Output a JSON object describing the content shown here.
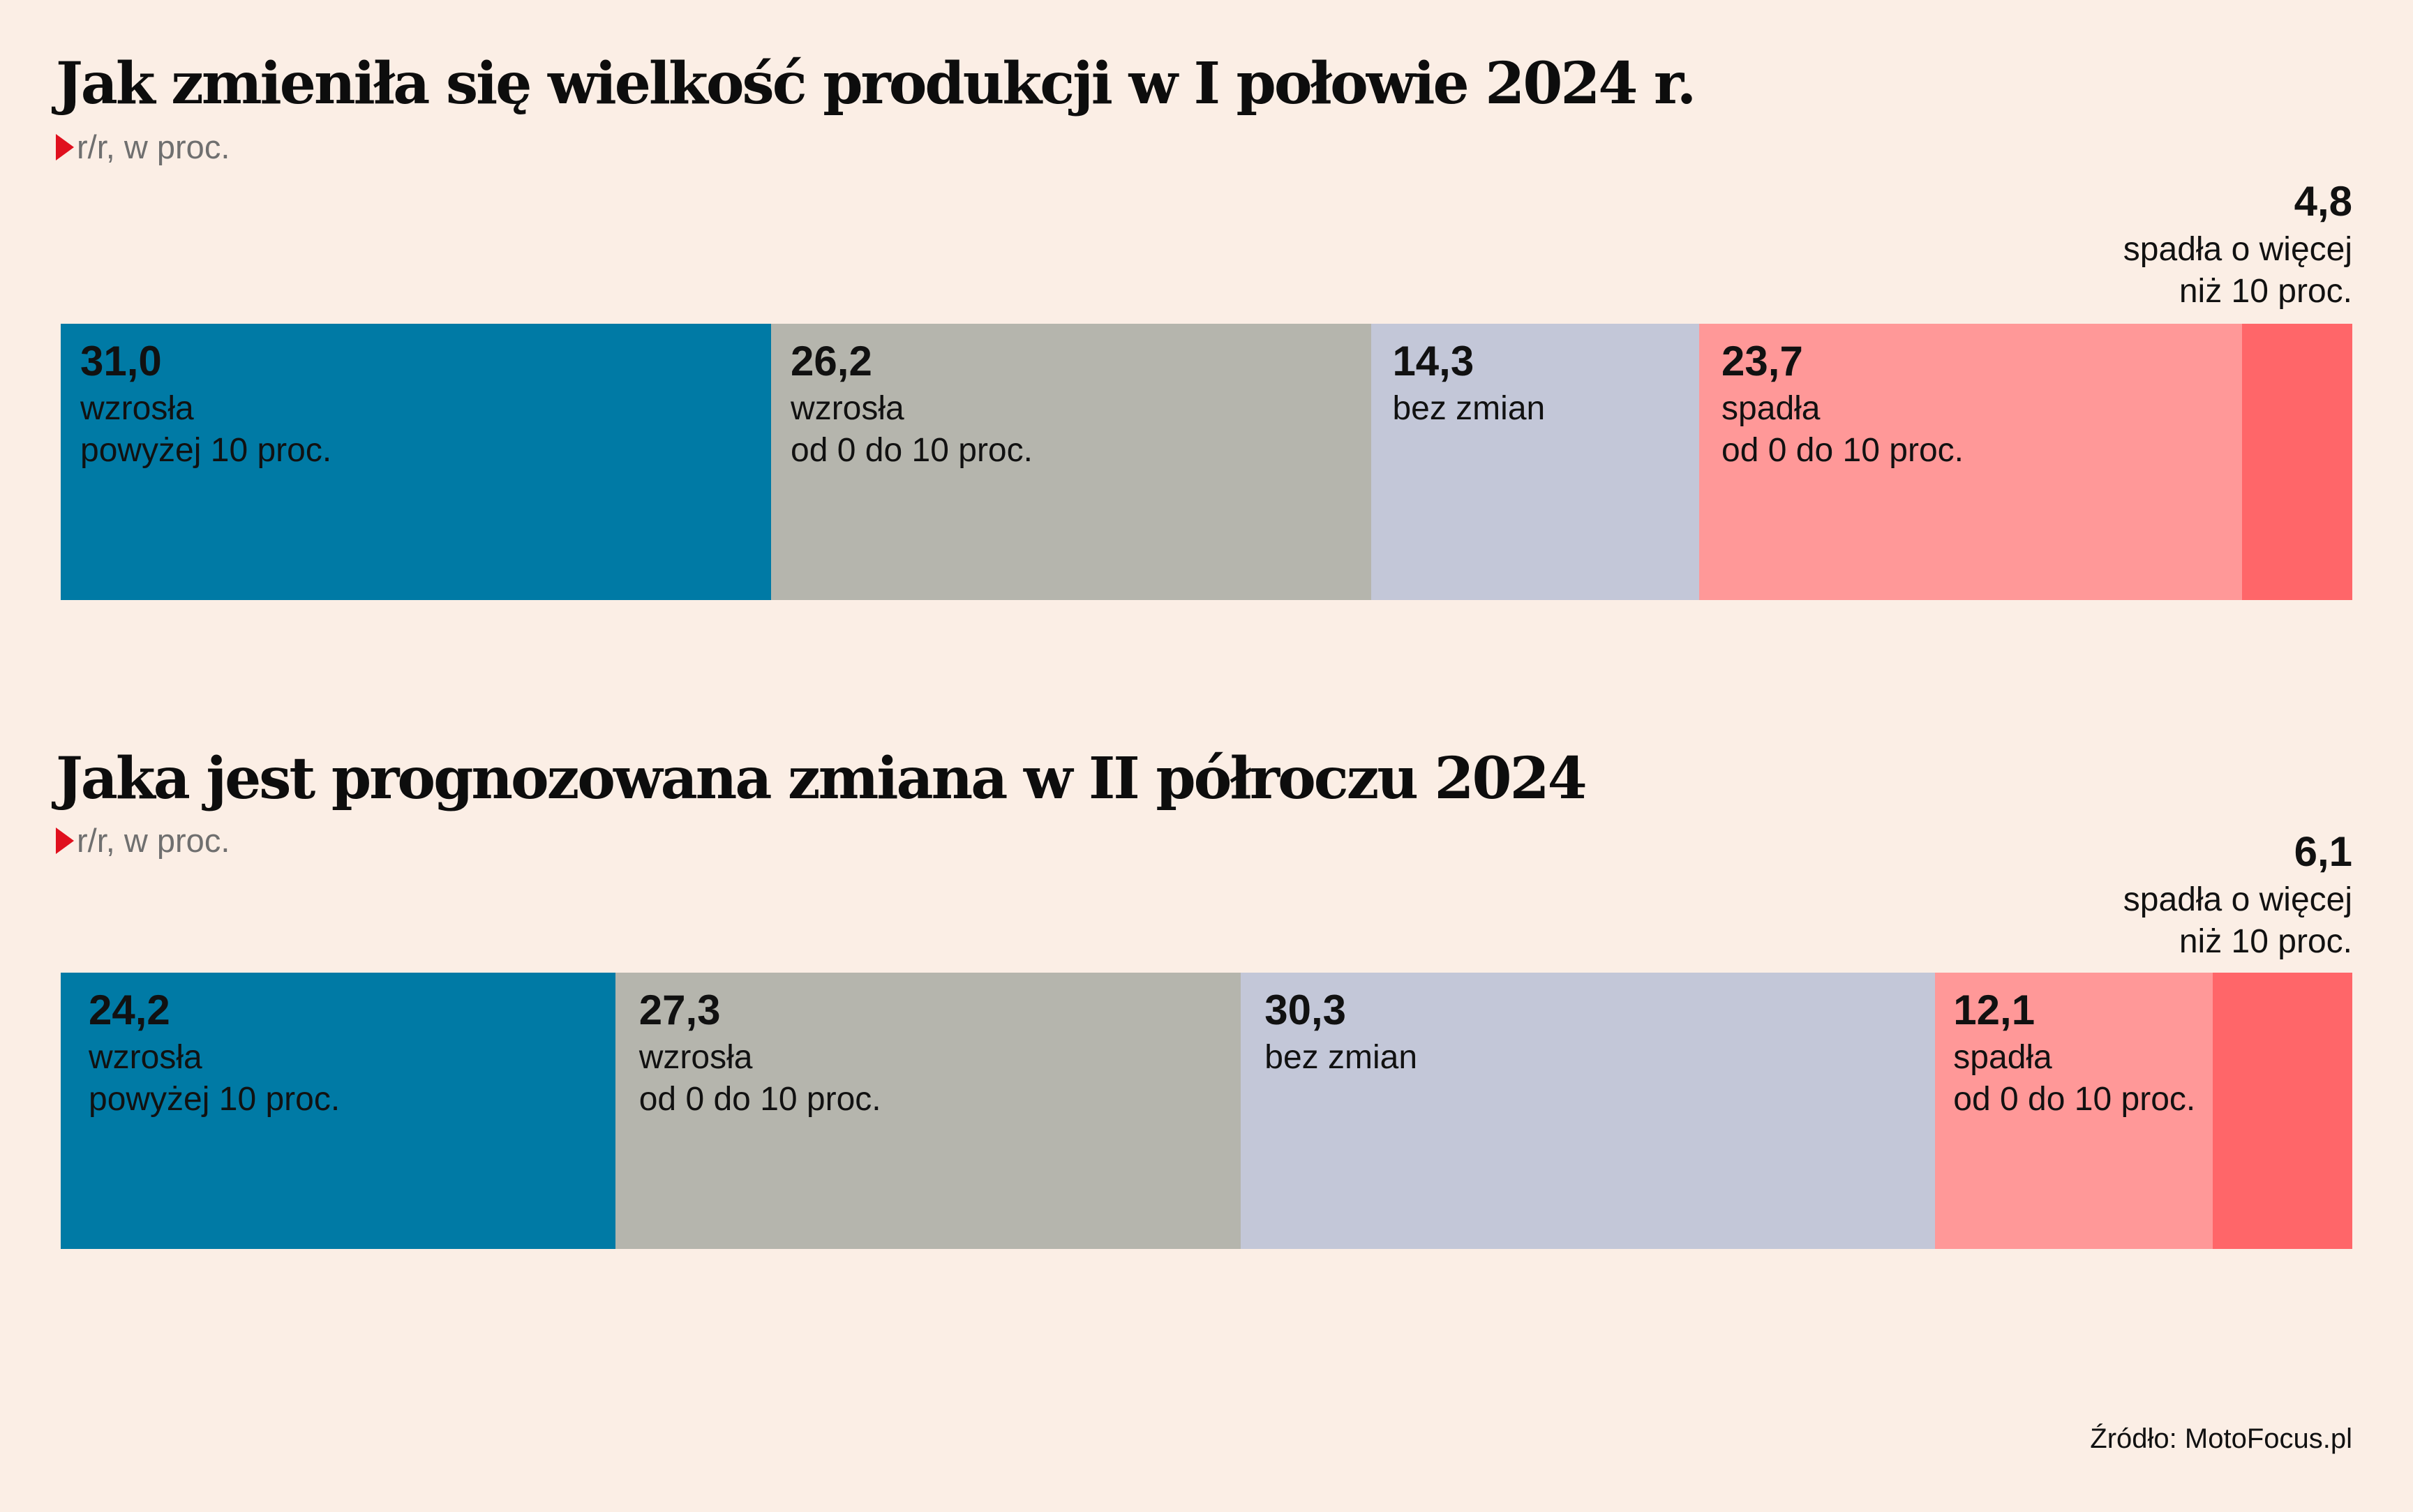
{
  "source": "Źródło: MotoFocus.pl",
  "colors": {
    "rose_strongly": "#007aa5",
    "rose_slightly": "#b5b5ad",
    "no_change": "#c3c7d8",
    "fell_slightly": "#ff9898",
    "fell_strongly": "#ff6669"
  },
  "charts": [
    {
      "title": "Jak zmieniła się wielkość produkcji w I połowie 2024 r.",
      "subtitle": "r/r, w proc.",
      "segments": [
        {
          "value_label": "31,0",
          "line1": "wzrosła",
          "line2": "powyżej 10 proc."
        },
        {
          "value_label": "26,2",
          "line1": "wzrosła",
          "line2": "od 0 do 10 proc."
        },
        {
          "value_label": "14,3",
          "line1": "bez zmian",
          "line2": ""
        },
        {
          "value_label": "23,7",
          "line1": "spadła",
          "line2": "od 0 do 10 proc."
        },
        {
          "value_label": "4,8",
          "line1": "spadła o więcej",
          "line2": "niż 10 proc."
        }
      ]
    },
    {
      "title": "Jaka jest prognozowana zmiana w II półroczu 2024",
      "subtitle": "r/r, w proc.",
      "segments": [
        {
          "value_label": "24,2",
          "line1": "wzrosła",
          "line2": "powyżej 10 proc."
        },
        {
          "value_label": "27,3",
          "line1": "wzrosła",
          "line2": "od 0 do 10 proc."
        },
        {
          "value_label": "30,3",
          "line1": "bez zmian",
          "line2": ""
        },
        {
          "value_label": "12,1",
          "line1": "spadła",
          "line2": "od 0 do 10 proc."
        },
        {
          "value_label": "6,1",
          "line1": "spadła o więcej",
          "line2": "niż 10 proc."
        }
      ]
    }
  ],
  "chart_data": [
    {
      "type": "bar",
      "stacked": true,
      "orientation": "horizontal",
      "title": "Jak zmieniła się wielkość produkcji w I połowie 2024 r.",
      "subtitle": "r/r, w proc.",
      "categories": [
        "wzrosła powyżej 10 proc.",
        "wzrosła od 0 do 10 proc.",
        "bez zmian",
        "spadła od 0 do 10 proc.",
        "spadła o więcej niż 10 proc."
      ],
      "values": [
        31.0,
        26.2,
        14.3,
        23.7,
        4.8
      ]
    },
    {
      "type": "bar",
      "stacked": true,
      "orientation": "horizontal",
      "title": "Jaka jest prognozowana zmiana w II półroczu 2024",
      "subtitle": "r/r, w proc.",
      "categories": [
        "wzrosła powyżej 10 proc.",
        "wzrosła od 0 do 10 proc.",
        "bez zmian",
        "spadła od 0 do 10 proc.",
        "spadła o więcej niż 10 proc."
      ],
      "values": [
        24.2,
        27.3,
        30.3,
        12.1,
        6.1
      ]
    }
  ]
}
